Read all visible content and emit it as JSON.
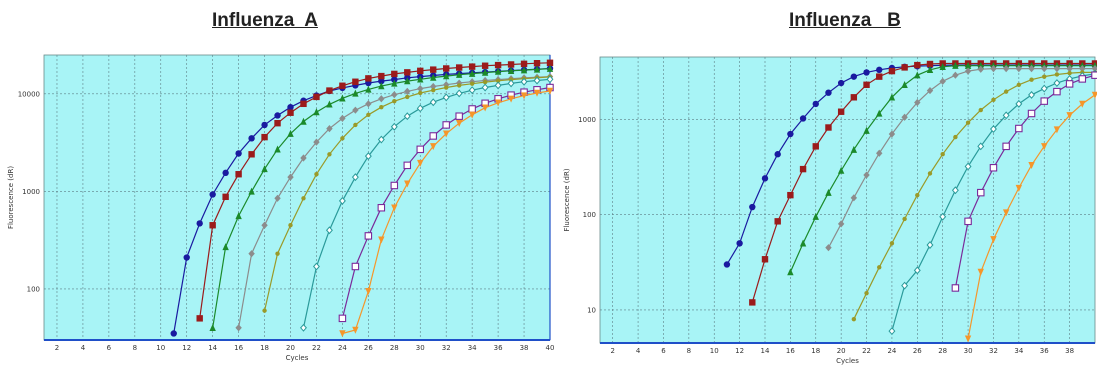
{
  "chart_data": [
    {
      "type": "line",
      "title": "Influenza  A",
      "xlabel": "Cycles",
      "ylabel": "Fluorescence (dR)",
      "yscale": "log",
      "xlim": [
        1,
        40
      ],
      "ylim": [
        30,
        25000
      ],
      "x_ticks": [
        2,
        4,
        6,
        8,
        10,
        12,
        14,
        16,
        18,
        20,
        22,
        24,
        26,
        28,
        30,
        32,
        34,
        36,
        38,
        40
      ],
      "y_ticks": [
        100,
        1000,
        10000
      ],
      "y_tick_labels": [
        "100",
        "1000",
        "10000"
      ],
      "plot_background": "#a8f4f6",
      "grid": true,
      "series": [
        {
          "color": "#1a1aa0",
          "marker": "circle",
          "x": [
            11,
            12,
            13,
            14,
            15,
            16,
            17,
            18,
            19,
            20,
            21,
            22,
            23,
            24,
            25,
            26,
            27,
            28,
            29,
            30,
            31,
            32,
            33,
            34,
            35,
            36,
            37,
            38,
            39,
            40
          ],
          "y": [
            35,
            210,
            470,
            930,
            1550,
            2450,
            3500,
            4800,
            6000,
            7300,
            8500,
            9600,
            10700,
            11500,
            12200,
            12900,
            13500,
            14000,
            14600,
            15000,
            15400,
            15800,
            16100,
            16400,
            16700,
            17000,
            17300,
            17600,
            17900,
            18200
          ]
        },
        {
          "color": "#9b1b1b",
          "marker": "square",
          "x": [
            13,
            14,
            15,
            16,
            17,
            18,
            19,
            20,
            21,
            22,
            23,
            24,
            25,
            26,
            27,
            28,
            29,
            30,
            31,
            32,
            33,
            34,
            35,
            36,
            37,
            38,
            39,
            40
          ],
          "y": [
            50,
            450,
            880,
            1500,
            2400,
            3600,
            5000,
            6400,
            7900,
            9300,
            10800,
            12100,
            13300,
            14400,
            15200,
            16000,
            16600,
            17200,
            17700,
            18200,
            18600,
            19000,
            19400,
            19700,
            20000,
            20300,
            20600,
            20800
          ]
        },
        {
          "color": "#1b8a2a",
          "marker": "triangle",
          "x": [
            14,
            15,
            16,
            17,
            18,
            19,
            20,
            21,
            22,
            23,
            24,
            25,
            26,
            27,
            28,
            29,
            30,
            31,
            32,
            33,
            34,
            35,
            36,
            37,
            38,
            39,
            40
          ],
          "y": [
            40,
            270,
            560,
            1000,
            1700,
            2700,
            3900,
            5200,
            6500,
            7800,
            9000,
            10100,
            11100,
            12000,
            12800,
            13500,
            14100,
            14700,
            15200,
            15700,
            16100,
            16500,
            16900,
            17200,
            17500,
            17800,
            18100
          ]
        },
        {
          "color": "#8c8c8c",
          "marker": "diamond",
          "x": [
            16,
            17,
            18,
            19,
            20,
            21,
            22,
            23,
            24,
            25,
            26,
            27,
            28,
            29,
            30,
            31,
            32,
            33,
            34,
            35,
            36,
            37,
            38,
            39,
            40
          ],
          "y": [
            40,
            230,
            450,
            850,
            1400,
            2200,
            3200,
            4400,
            5600,
            6800,
            7900,
            8900,
            9800,
            10600,
            11300,
            11900,
            12400,
            12900,
            13300,
            13700,
            14000,
            14300,
            14600,
            14800,
            15000
          ]
        },
        {
          "color": "#9a9a28",
          "marker": "small-circle",
          "x": [
            18,
            19,
            20,
            21,
            22,
            23,
            24,
            25,
            26,
            27,
            28,
            29,
            30,
            31,
            32,
            33,
            34,
            35,
            36,
            37,
            38,
            39,
            40
          ],
          "y": [
            60,
            230,
            450,
            850,
            1500,
            2400,
            3500,
            4800,
            6100,
            7300,
            8400,
            9300,
            10200,
            10900,
            11600,
            12200,
            12700,
            13200,
            13600,
            14000,
            14300,
            14600,
            14900
          ]
        },
        {
          "color": "#2a9a9a",
          "marker": "open-diamond",
          "x": [
            21,
            22,
            23,
            24,
            25,
            26,
            27,
            28,
            29,
            30,
            31,
            32,
            33,
            34,
            35,
            36,
            37,
            38,
            39,
            40
          ],
          "y": [
            40,
            170,
            400,
            800,
            1400,
            2300,
            3400,
            4600,
            5900,
            7100,
            8200,
            9200,
            10100,
            10900,
            11600,
            12200,
            12800,
            13300,
            13700,
            14100
          ]
        },
        {
          "color": "#7a2a9a",
          "marker": "open-square",
          "x": [
            24,
            25,
            26,
            27,
            28,
            29,
            30,
            31,
            32,
            33,
            34,
            35,
            36,
            37,
            38,
            39,
            40
          ],
          "y": [
            50,
            170,
            350,
            680,
            1150,
            1850,
            2700,
            3700,
            4800,
            5900,
            7000,
            8000,
            8900,
            9700,
            10400,
            11000,
            11600
          ]
        },
        {
          "color": "#f5962a",
          "marker": "triangle-down",
          "x": [
            24,
            25,
            26,
            27,
            28,
            29,
            30,
            31,
            32,
            33,
            34,
            35,
            36,
            37,
            38,
            39,
            40
          ],
          "y": [
            35,
            38,
            95,
            320,
            680,
            1200,
            1950,
            2900,
            3900,
            5000,
            6100,
            7200,
            8100,
            8900,
            9600,
            10200,
            10700
          ]
        }
      ]
    },
    {
      "type": "line",
      "title": "Influenza   B",
      "xlabel": "Cycles",
      "ylabel": "Fluorescence (dR)",
      "yscale": "log",
      "xlim": [
        1,
        40
      ],
      "ylim": [
        4.5,
        4500
      ],
      "x_ticks": [
        2,
        4,
        6,
        8,
        10,
        12,
        14,
        16,
        18,
        20,
        22,
        24,
        26,
        28,
        30,
        32,
        34,
        36,
        38
      ],
      "y_ticks": [
        10,
        100,
        1000
      ],
      "y_tick_labels": [
        "10",
        "100",
        "1000"
      ],
      "plot_background": "#a8f4f6",
      "grid": true,
      "series": [
        {
          "color": "#1a1aa0",
          "marker": "circle",
          "x": [
            11,
            12,
            13,
            14,
            15,
            16,
            17,
            18,
            19,
            20,
            21,
            22,
            23,
            24,
            25,
            26,
            27,
            28,
            29,
            30,
            31,
            32,
            33,
            34,
            35,
            36,
            37,
            38,
            39,
            40
          ],
          "y": [
            30,
            50,
            120,
            240,
            430,
            700,
            1020,
            1450,
            1900,
            2400,
            2800,
            3100,
            3300,
            3450,
            3550,
            3600,
            3650,
            3680,
            3700,
            3700,
            3700,
            3700,
            3700,
            3700,
            3700,
            3700,
            3700,
            3700,
            3700,
            3700
          ]
        },
        {
          "color": "#9b1b1b",
          "marker": "square",
          "x": [
            13,
            14,
            15,
            16,
            17,
            18,
            19,
            20,
            21,
            22,
            23,
            24,
            25,
            26,
            27,
            28,
            29,
            30,
            31,
            32,
            33,
            34,
            35,
            36,
            37,
            38,
            39,
            40
          ],
          "y": [
            12,
            34,
            85,
            160,
            300,
            520,
            820,
            1200,
            1700,
            2300,
            2800,
            3200,
            3500,
            3700,
            3800,
            3850,
            3850,
            3850,
            3850,
            3850,
            3850,
            3850,
            3850,
            3850,
            3850,
            3850,
            3850,
            3850
          ]
        },
        {
          "color": "#1b8a2a",
          "marker": "triangle",
          "x": [
            16,
            17,
            18,
            19,
            20,
            21,
            22,
            23,
            24,
            25,
            26,
            27,
            28,
            29,
            30,
            31,
            32,
            33,
            34,
            35,
            36,
            37,
            38,
            39,
            40
          ],
          "y": [
            25,
            50,
            95,
            170,
            290,
            480,
            760,
            1150,
            1700,
            2300,
            2900,
            3300,
            3550,
            3650,
            3650,
            3650,
            3650,
            3650,
            3650,
            3650,
            3650,
            3650,
            3650,
            3650,
            3650
          ]
        },
        {
          "color": "#8c8c8c",
          "marker": "diamond",
          "x": [
            19,
            20,
            21,
            22,
            23,
            24,
            25,
            26,
            27,
            28,
            29,
            30,
            31,
            32,
            33,
            34,
            35,
            36,
            37,
            38,
            39,
            40
          ],
          "y": [
            45,
            80,
            150,
            260,
            440,
            700,
            1050,
            1500,
            2000,
            2500,
            2900,
            3200,
            3350,
            3400,
            3400,
            3400,
            3400,
            3400,
            3400,
            3400,
            3400,
            3400
          ]
        },
        {
          "color": "#9a9a28",
          "marker": "small-circle",
          "x": [
            21,
            22,
            23,
            24,
            25,
            26,
            27,
            28,
            29,
            30,
            31,
            32,
            33,
            34,
            35,
            36,
            37,
            38,
            39,
            40
          ],
          "y": [
            8,
            15,
            28,
            50,
            90,
            160,
            270,
            430,
            650,
            920,
            1250,
            1600,
            1950,
            2300,
            2600,
            2800,
            2950,
            3050,
            3100,
            3100
          ]
        },
        {
          "color": "#2a9a9a",
          "marker": "open-diamond",
          "x": [
            24,
            25,
            26,
            27,
            28,
            29,
            30,
            31,
            32,
            33,
            34,
            35,
            36,
            37,
            38,
            39,
            40
          ],
          "y": [
            6,
            18,
            26,
            48,
            95,
            180,
            320,
            520,
            790,
            1100,
            1450,
            1800,
            2100,
            2400,
            2650,
            2850,
            3000
          ]
        },
        {
          "color": "#7a2a9a",
          "marker": "open-square",
          "x": [
            29,
            30,
            31,
            32,
            33,
            34,
            35,
            36,
            37,
            38,
            39,
            40
          ],
          "y": [
            17,
            85,
            170,
            310,
            520,
            800,
            1150,
            1550,
            1950,
            2350,
            2650,
            2900
          ]
        },
        {
          "color": "#f5962a",
          "marker": "triangle-down",
          "x": [
            30,
            31,
            32,
            33,
            34,
            35,
            36,
            37,
            38,
            39,
            40
          ],
          "y": [
            5,
            25,
            55,
            105,
            190,
            330,
            520,
            780,
            1100,
            1450,
            1800
          ]
        }
      ]
    }
  ]
}
